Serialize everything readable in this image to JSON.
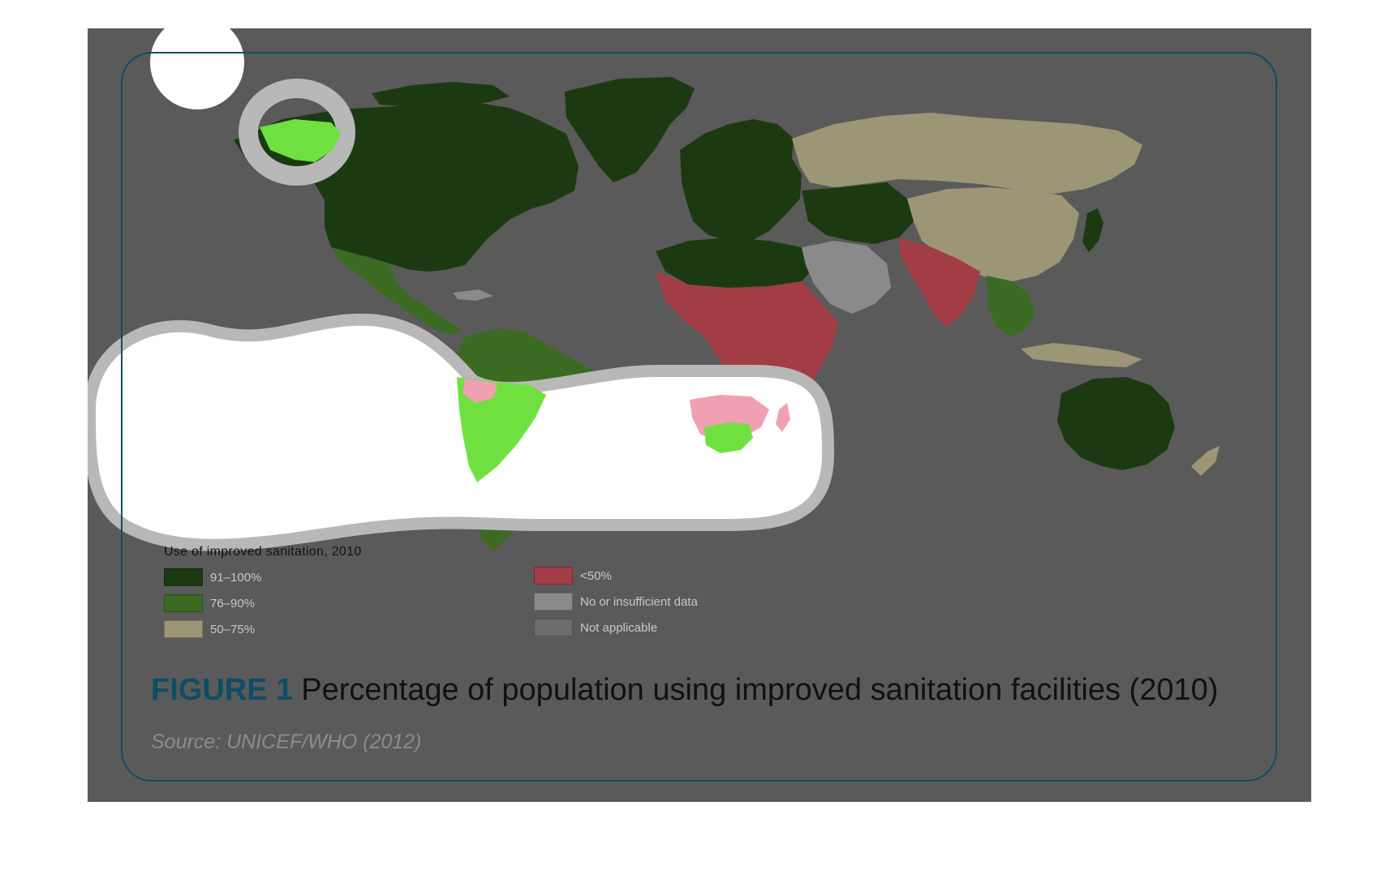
{
  "figure": {
    "label": "FIGURE 1",
    "caption": "Percentage of population using improved sanitation facilities (2010)",
    "source": "Source: UNICEF/WHO (2012)"
  },
  "legend": {
    "title": "Use of improved sanitation, 2010",
    "left_items": [
      {
        "label": "91–100%",
        "color": "#1c3a12"
      },
      {
        "label": "76–90%",
        "color": "#3b6b22"
      },
      {
        "label": "50–75%",
        "color": "#9c9676"
      }
    ],
    "right_items": [
      {
        "label": "<50%",
        "color": "#a23c45"
      },
      {
        "label": "No or insufficient data",
        "color": "#8a8a8a"
      },
      {
        "label": "Not applicable",
        "color": "#6c6c6c"
      }
    ]
  },
  "colors": {
    "background": "#5a5a5a",
    "frame": "#0e4d66",
    "ocean": "#5a5a5a",
    "tier_91_100": "#1c3a12",
    "tier_76_90": "#3b6b22",
    "tier_50_75": "#9c9676",
    "tier_below_50": "#a23c45",
    "tier_no_data": "#8a8a8a",
    "highlight_green": "#6fe040",
    "highlight_pink": "#f0a0b0"
  },
  "map_regions": [
    {
      "name": "north-america",
      "tier": "91-100%"
    },
    {
      "name": "greenland",
      "tier": "91-100%"
    },
    {
      "name": "mexico-central-america",
      "tier": "76-90%"
    },
    {
      "name": "south-america",
      "tier": "76-90%"
    },
    {
      "name": "europe",
      "tier": "91-100%"
    },
    {
      "name": "russia",
      "tier": "50-75%"
    },
    {
      "name": "china",
      "tier": "50-75%"
    },
    {
      "name": "north-africa",
      "tier": "91-100%"
    },
    {
      "name": "sub-saharan-africa",
      "tier": "<50%"
    },
    {
      "name": "south-asia",
      "tier": "<50%"
    },
    {
      "name": "arabian-peninsula",
      "tier": "No or insufficient data"
    },
    {
      "name": "australia",
      "tier": "91-100%"
    }
  ]
}
